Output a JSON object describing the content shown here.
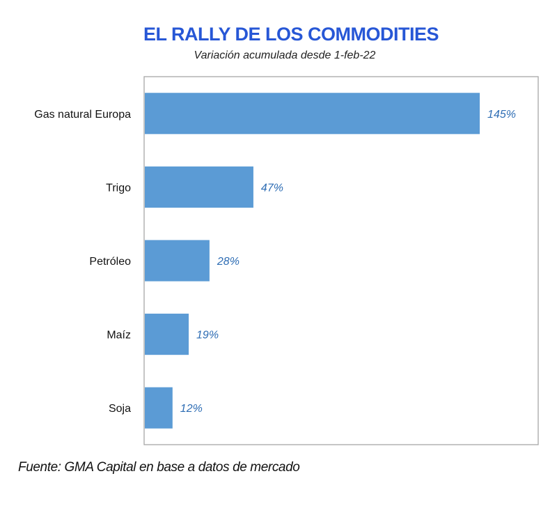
{
  "title": "EL RALLY DE LOS COMMODITIES",
  "subtitle": "Variación acumulada desde 1-feb-22",
  "source": "Fuente: GMA Capital en base a datos de mercado",
  "colors": {
    "bar": "#5b9bd5",
    "data_label": "#2e6db4",
    "title": "#2757d6",
    "frame": "#a6a6a6"
  },
  "chart_data": {
    "type": "bar",
    "orientation": "horizontal",
    "categories": [
      "Gas natural Europa",
      "Trigo",
      "Petróleo",
      "Maíz",
      "Soja"
    ],
    "values": [
      145,
      47,
      28,
      19,
      12
    ],
    "data_labels": [
      "145%",
      "47%",
      "28%",
      "19%",
      "12%"
    ],
    "title": "EL RALLY DE LOS COMMODITIES",
    "subtitle": "Variación acumulada desde 1-feb-22",
    "xlim": [
      0,
      170
    ],
    "grid": false,
    "legend": "none"
  }
}
